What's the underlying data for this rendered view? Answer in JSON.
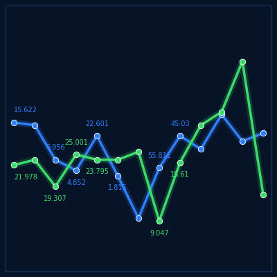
{
  "chart_data": {
    "type": "line",
    "categories": [
      null,
      null,
      null,
      null,
      null,
      null,
      null,
      null,
      null,
      null,
      null,
      null,
      null
    ],
    "series": [
      {
        "color": "#2f7fff",
        "marker": "o",
        "line_style": "solid",
        "values": [
          56,
          55,
          42,
          38,
          51,
          36,
          20,
          39,
          51,
          46,
          59,
          49,
          52
        ]
      },
      {
        "color": "#3ddc6a",
        "marker": "o",
        "line_style": "solid",
        "values": [
          40,
          42,
          32,
          44,
          42,
          42,
          45,
          19,
          41,
          55,
          60,
          79,
          29
        ]
      }
    ],
    "annotations": [
      {
        "text": "15.622",
        "series": 0,
        "index": 0
      },
      {
        "text": "6.956",
        "series": 0,
        "index": 2
      },
      {
        "text": "4.852",
        "series": 0,
        "index": 3
      },
      {
        "text": "22.601",
        "series": 0,
        "index": 4
      },
      {
        "text": "1.815",
        "series": 0,
        "index": 5
      },
      {
        "text": "55.811",
        "series": 0,
        "index": 7
      },
      {
        "text": "45.03",
        "series": 0,
        "index": 8
      },
      {
        "text": "21.978",
        "series": 1,
        "index": 0
      },
      {
        "text": "19.307",
        "series": 1,
        "index": 2
      },
      {
        "text": "25.001",
        "series": 1,
        "index": 3
      },
      {
        "text": "23.795",
        "series": 1,
        "index": 4
      },
      {
        "text": "9.047",
        "series": 1,
        "index": 7
      },
      {
        "text": "18.61",
        "series": 1,
        "index": 8
      }
    ],
    "ylim": [
      0,
      100
    ],
    "grid": false,
    "tick_labels": false
  }
}
